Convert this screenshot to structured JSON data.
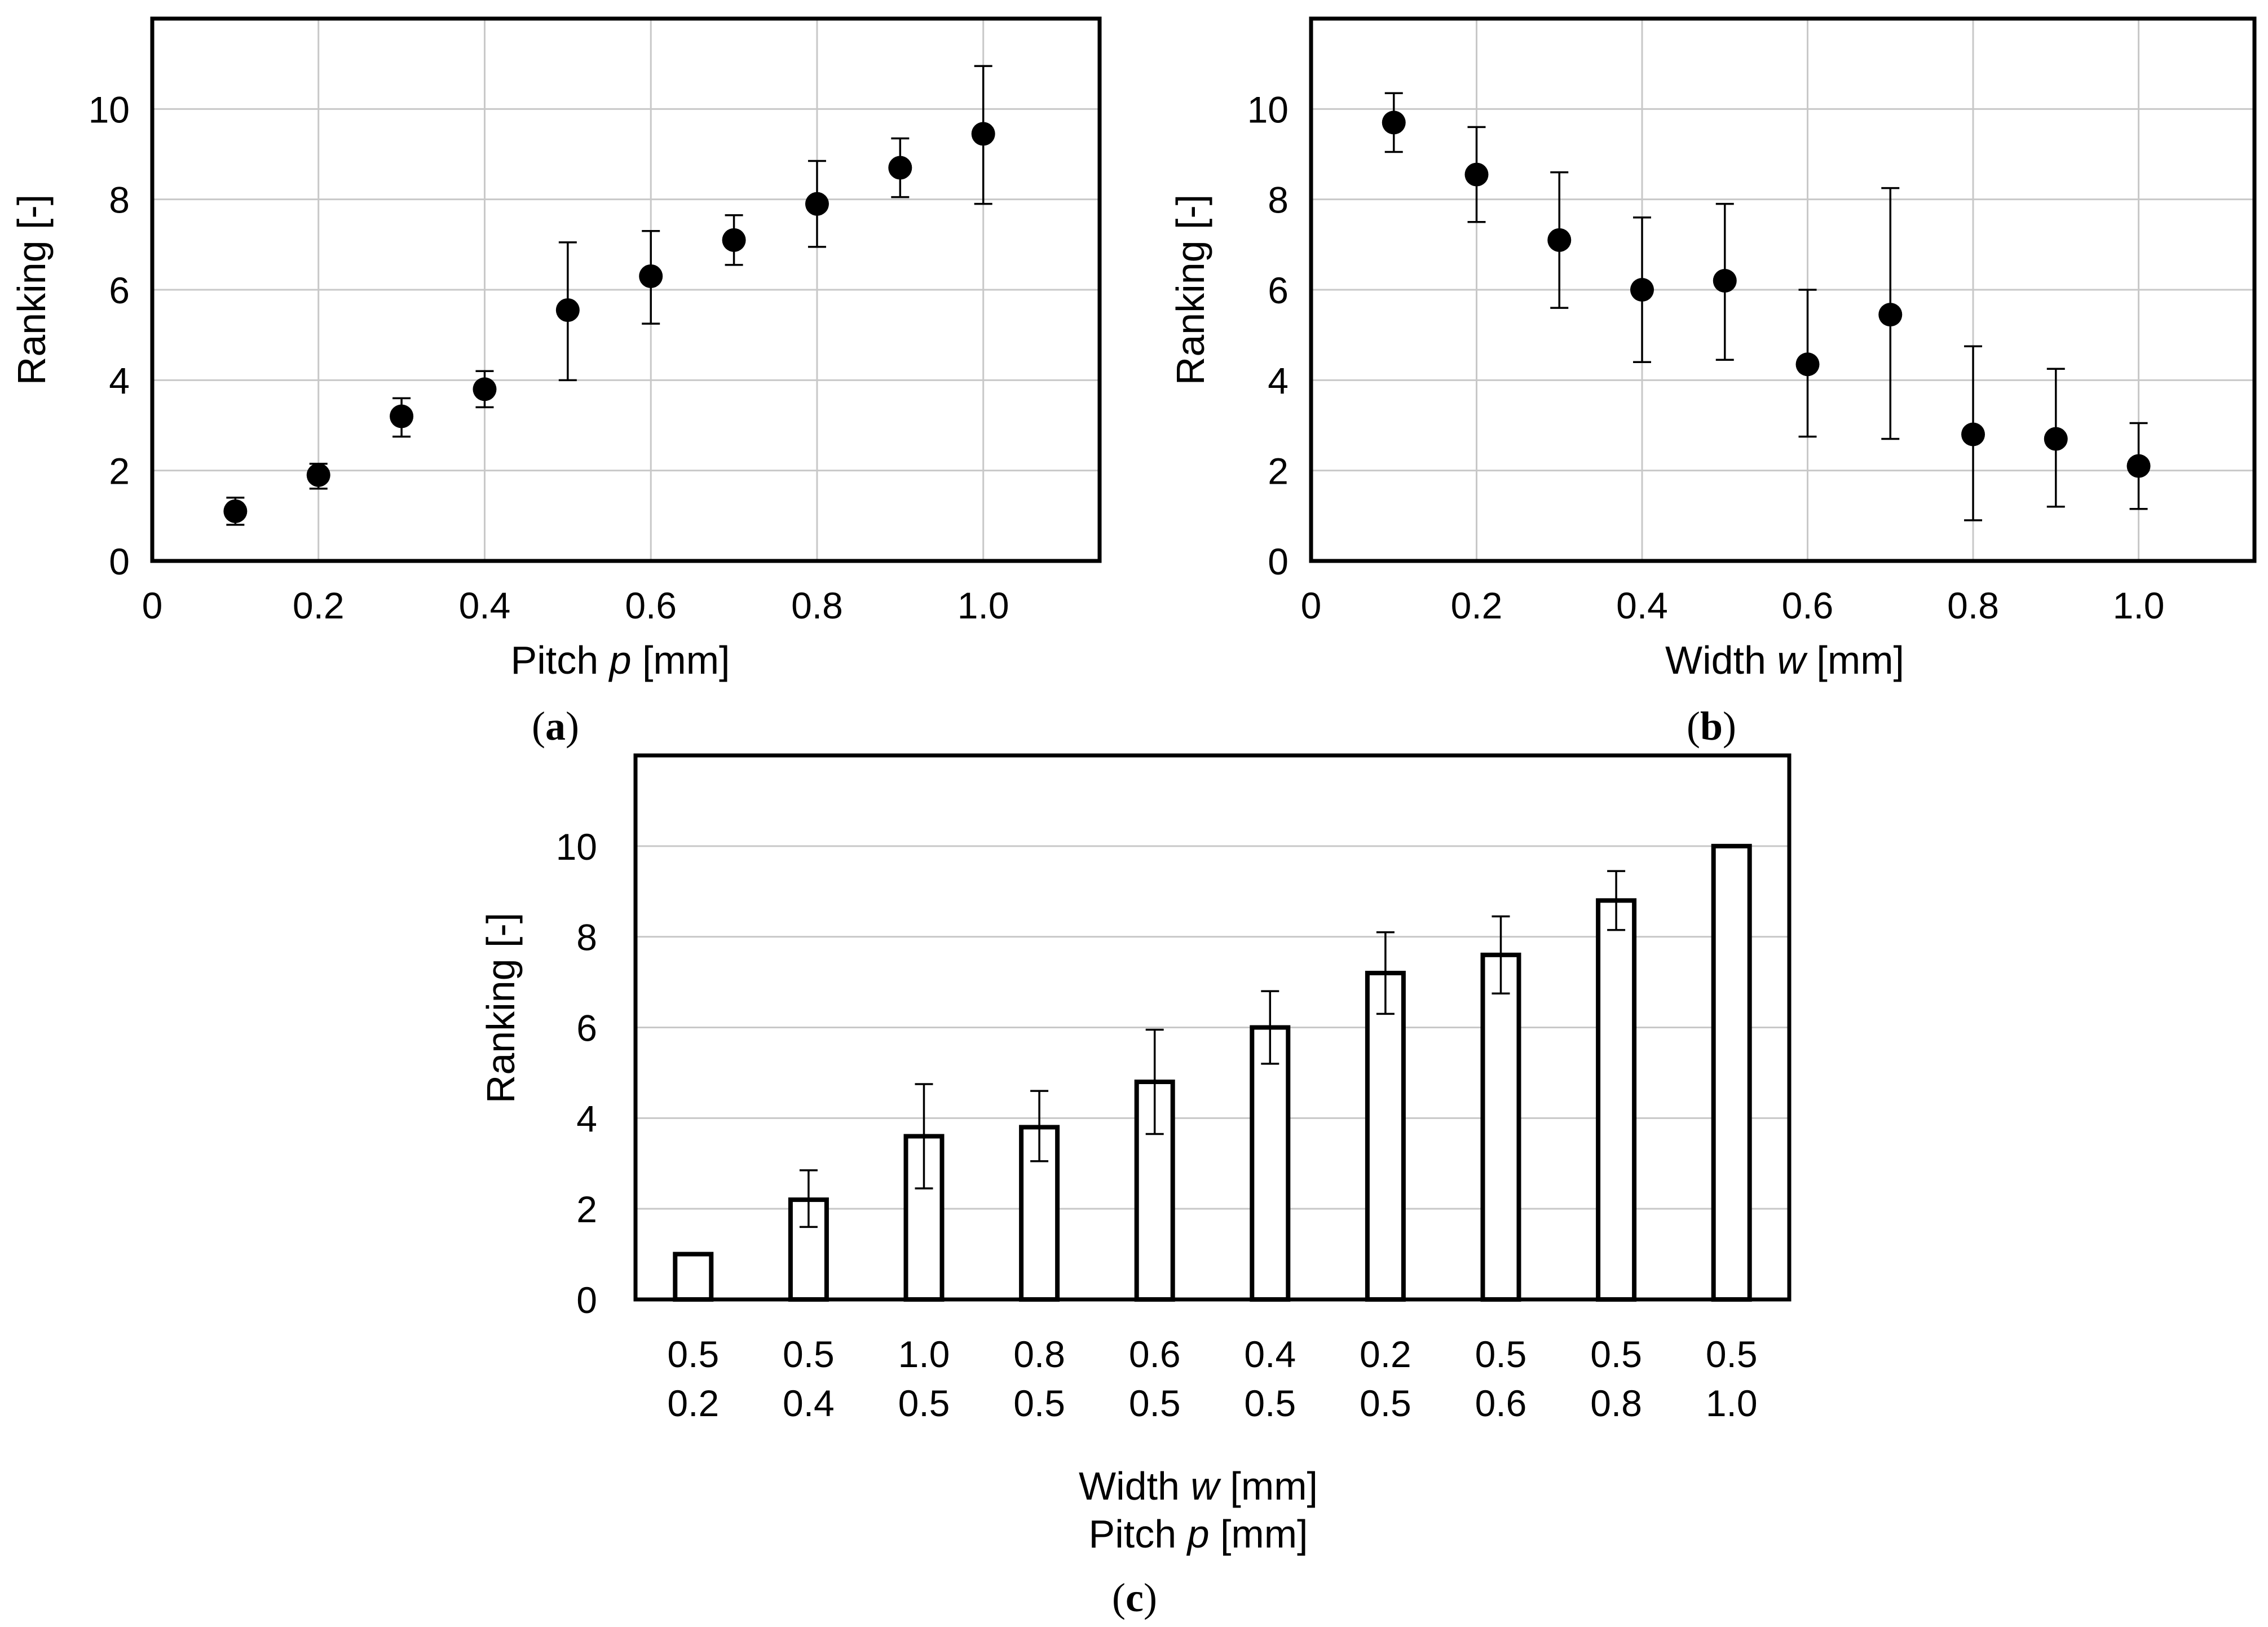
{
  "chart_data": [
    {
      "id": "a",
      "type": "scatter",
      "panel_label": "a",
      "xlabel": {
        "prefix": "Pitch ",
        "var": "p",
        "suffix": " [mm]"
      },
      "ylabel": "Ranking [-]",
      "xlim": [
        0,
        1.14
      ],
      "ylim": [
        0,
        12
      ],
      "xticks": [
        0,
        0.2,
        0.4,
        0.6,
        0.8,
        1.0
      ],
      "xtick_labels": [
        "0",
        "0.2",
        "0.4",
        "0.6",
        "0.8",
        "1.0"
      ],
      "yticks": [
        0,
        2,
        4,
        6,
        8,
        10
      ],
      "ytick_labels": [
        "0",
        "2",
        "4",
        "6",
        "8",
        "10"
      ],
      "grid": true,
      "x": [
        0.1,
        0.2,
        0.3,
        0.4,
        0.5,
        0.6,
        0.7,
        0.8,
        0.9,
        1.0
      ],
      "y": [
        1.1,
        1.9,
        3.2,
        3.8,
        5.55,
        6.3,
        7.1,
        7.9,
        8.7,
        9.45
      ],
      "err_low": [
        0.8,
        1.6,
        2.75,
        3.4,
        4.0,
        5.25,
        6.55,
        6.95,
        8.05,
        7.9
      ],
      "err_high": [
        1.4,
        2.15,
        3.6,
        4.2,
        7.05,
        7.3,
        7.65,
        8.85,
        9.35,
        10.95
      ]
    },
    {
      "id": "b",
      "type": "scatter",
      "panel_label": "b",
      "xlabel": {
        "prefix": "Width ",
        "var": "w",
        "suffix": " [mm]"
      },
      "ylabel": "Ranking [-]",
      "xlim": [
        0,
        1.14
      ],
      "ylim": [
        0,
        12
      ],
      "xticks": [
        0,
        0.2,
        0.4,
        0.6,
        0.8,
        1.0
      ],
      "xtick_labels": [
        "0",
        "0.2",
        "0.4",
        "0.6",
        "0.8",
        "1.0"
      ],
      "yticks": [
        0,
        2,
        4,
        6,
        8,
        10
      ],
      "ytick_labels": [
        "0",
        "2",
        "4",
        "6",
        "8",
        "10"
      ],
      "grid": true,
      "x": [
        0.1,
        0.2,
        0.3,
        0.4,
        0.5,
        0.6,
        0.7,
        0.8,
        0.9,
        1.0
      ],
      "y": [
        9.7,
        8.55,
        7.1,
        6.0,
        6.2,
        4.35,
        5.45,
        2.8,
        2.7,
        2.1
      ],
      "err_low": [
        9.05,
        7.5,
        5.6,
        4.4,
        4.45,
        2.75,
        2.7,
        0.9,
        1.2,
        1.15
      ],
      "err_high": [
        10.35,
        9.6,
        8.6,
        7.6,
        7.9,
        6.0,
        8.25,
        4.75,
        4.25,
        3.05
      ]
    },
    {
      "id": "c",
      "type": "bar",
      "panel_label": "c",
      "xlabel_line1": {
        "prefix": "Width ",
        "var": "w",
        "suffix": " [mm]"
      },
      "xlabel_line2": {
        "prefix": "Pitch ",
        "var": "p",
        "suffix": " [mm]"
      },
      "ylabel": "Ranking [-]",
      "ylim": [
        0,
        12
      ],
      "yticks": [
        0,
        2,
        4,
        6,
        8,
        10
      ],
      "ytick_labels": [
        "0",
        "2",
        "4",
        "6",
        "8",
        "10"
      ],
      "grid": true,
      "categories": [
        {
          "width": "0.5",
          "pitch": "0.2"
        },
        {
          "width": "0.5",
          "pitch": "0.4"
        },
        {
          "width": "1.0",
          "pitch": "0.5"
        },
        {
          "width": "0.8",
          "pitch": "0.5"
        },
        {
          "width": "0.6",
          "pitch": "0.5"
        },
        {
          "width": "0.4",
          "pitch": "0.5"
        },
        {
          "width": "0.2",
          "pitch": "0.5"
        },
        {
          "width": "0.5",
          "pitch": "0.6"
        },
        {
          "width": "0.5",
          "pitch": "0.8"
        },
        {
          "width": "0.5",
          "pitch": "1.0"
        }
      ],
      "values": [
        1.0,
        2.2,
        3.6,
        3.8,
        4.8,
        6.0,
        7.2,
        7.6,
        8.8,
        10.0
      ],
      "err_low": [
        null,
        1.6,
        2.45,
        3.05,
        3.65,
        5.2,
        6.3,
        6.75,
        8.15,
        null
      ],
      "err_high": [
        null,
        2.85,
        4.75,
        4.6,
        5.95,
        6.8,
        8.1,
        8.45,
        9.45,
        null
      ]
    }
  ]
}
